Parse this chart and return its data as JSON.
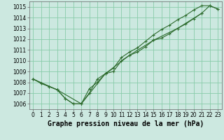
{
  "title": "Graphe pression niveau de la mer (hPa)",
  "background_color": "#cce8e0",
  "grid_color": "#88ccaa",
  "line_color": "#2d6b2d",
  "xlim": [
    -0.5,
    23.5
  ],
  "ylim": [
    1005.5,
    1015.5
  ],
  "yticks": [
    1006,
    1007,
    1008,
    1009,
    1010,
    1011,
    1012,
    1013,
    1014,
    1015
  ],
  "xticks": [
    0,
    1,
    2,
    3,
    4,
    5,
    6,
    7,
    8,
    9,
    10,
    11,
    12,
    13,
    14,
    15,
    16,
    17,
    18,
    19,
    20,
    21,
    22,
    23
  ],
  "series1": {
    "x": [
      0,
      1,
      2,
      3,
      4,
      5,
      6,
      7,
      8,
      9,
      10,
      11,
      12,
      13,
      14,
      15,
      16,
      17,
      18,
      19,
      20,
      21,
      22,
      23
    ],
    "y": [
      1008.3,
      1007.9,
      1007.6,
      1007.3,
      1006.5,
      1006.0,
      1006.0,
      1007.0,
      1008.3,
      1008.8,
      1009.0,
      1010.0,
      1010.5,
      1010.8,
      1011.3,
      1011.9,
      1012.1,
      1012.5,
      1013.0,
      1013.4,
      1013.9,
      1014.4,
      1015.1,
      1014.8
    ]
  },
  "series2": {
    "x": [
      0,
      1,
      2,
      3,
      4,
      5,
      6,
      7,
      8,
      9,
      10,
      11,
      12,
      13,
      14,
      15,
      16,
      17,
      18,
      19,
      20,
      21,
      22,
      23
    ],
    "y": [
      1008.3,
      1007.9,
      1007.6,
      1007.3,
      1006.5,
      1006.0,
      1006.0,
      1007.4,
      1008.0,
      1008.8,
      1009.3,
      1010.3,
      1010.8,
      1011.2,
      1011.8,
      1012.4,
      1012.9,
      1013.3,
      1013.8,
      1014.2,
      1014.7,
      1015.1,
      1015.1,
      1014.8
    ]
  },
  "series3": {
    "x": [
      0,
      3,
      6,
      9,
      12,
      15,
      18,
      21
    ],
    "y": [
      1008.3,
      1007.3,
      1006.0,
      1008.8,
      1010.5,
      1011.9,
      1013.0,
      1014.4
    ]
  },
  "title_fontsize": 7,
  "tick_fontsize": 5.5
}
